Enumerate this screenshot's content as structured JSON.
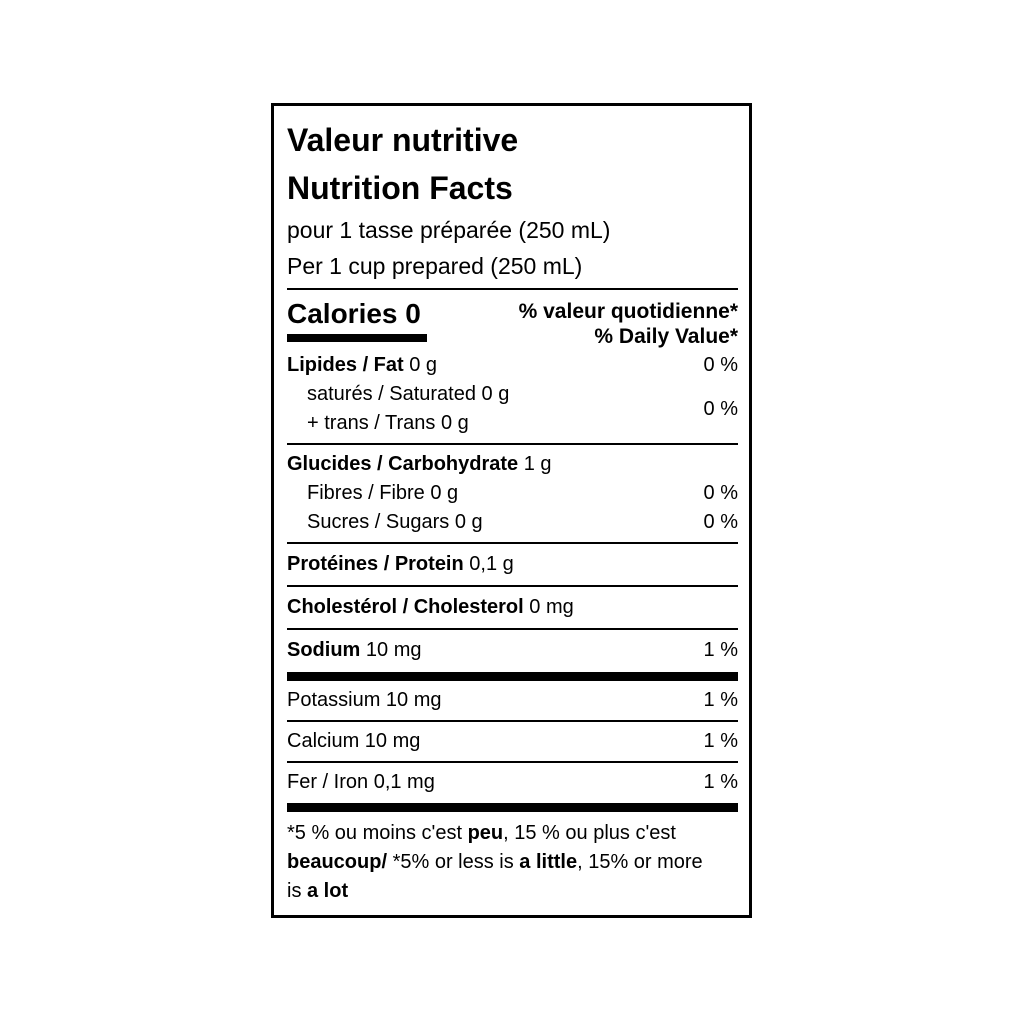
{
  "label": {
    "title_fr": "Valeur nutritive",
    "title_en": "Nutrition Facts",
    "serving_fr": "pour 1 tasse préparée (250 mL)",
    "serving_en": "Per 1 cup prepared (250 mL)",
    "calories_label": "Calories",
    "calories_value": "0",
    "dv_header_fr": "% valeur quotidienne*",
    "dv_header_en": "% Daily Value*",
    "fat": {
      "name": "Lipides / Fat",
      "amount": " 0 g",
      "dv": "0 %"
    },
    "saturated": {
      "name": "saturés / Saturated 0 g"
    },
    "trans": {
      "name": "+ trans / Trans 0 g",
      "dv": "0 %"
    },
    "carbohydrate": {
      "name": "Glucides / Carbohydrate",
      "amount": " 1 g"
    },
    "fibre": {
      "name": "Fibres / Fibre 0 g",
      "dv": "0 %"
    },
    "sugars": {
      "name": "Sucres / Sugars 0 g",
      "dv": "0 %"
    },
    "protein": {
      "name": "Protéines / Protein",
      "amount": " 0,1 g"
    },
    "cholesterol": {
      "name": "Cholestérol / Cholesterol",
      "amount": " 0 mg"
    },
    "sodium": {
      "name": "Sodium",
      "amount": " 10 mg",
      "dv": "1 %"
    },
    "potassium": {
      "name": "Potassium 10 mg",
      "dv": "1 %"
    },
    "calcium": {
      "name": "Calcium 10 mg",
      "dv": "1 %"
    },
    "iron": {
      "name": "Fer / Iron 0,1 mg",
      "dv": "1 %"
    },
    "footnote": {
      "fr_pre": "*5 % ou moins c'est ",
      "fr_low": "peu",
      "fr_mid": ", 15 % ou plus c'est ",
      "fr_high": "beaucoup/",
      "en_pre": " *5% or less is ",
      "en_low": "a little",
      "en_mid": ", 15% or more is ",
      "en_high": "a lot"
    }
  }
}
